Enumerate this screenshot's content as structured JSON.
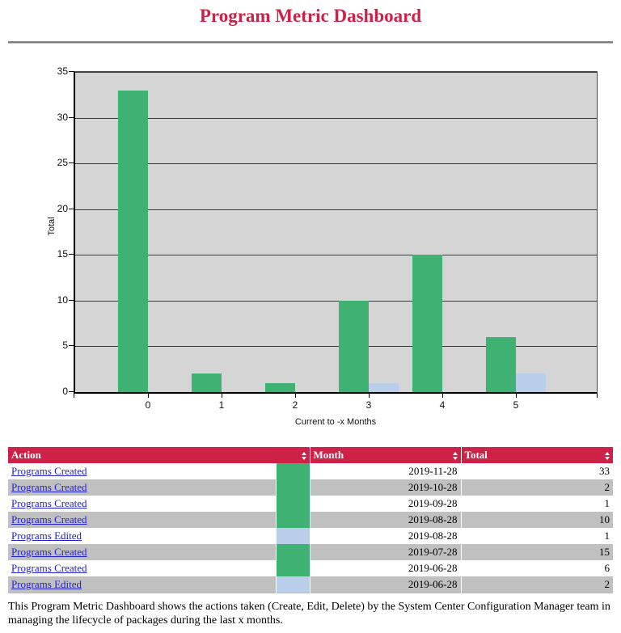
{
  "page": {
    "title": "Program Metric Dashboard",
    "footer": "This Program Metric Dashboard shows the actions taken (Create, Edit, Delete) by the System Center Configuration Manager team in managing the lifecycle of packages during the last x months."
  },
  "chart_data": {
    "type": "bar",
    "title": "",
    "xlabel": "Current to -x Months",
    "ylabel": "Total",
    "categories": [
      "0",
      "1",
      "2",
      "3",
      "4",
      "5"
    ],
    "series": [
      {
        "name": "Programs Created",
        "color": "#3EB173",
        "values": [
          33,
          2,
          1,
          10,
          15,
          6
        ]
      },
      {
        "name": "Programs Edited",
        "color": "#B9CEE9",
        "values": [
          null,
          null,
          null,
          1,
          null,
          2
        ]
      }
    ],
    "ylim": [
      0,
      35
    ],
    "yticks": [
      0,
      5,
      10,
      15,
      20,
      25,
      30,
      35
    ],
    "grid": true,
    "legend": "none",
    "plot_bg": "#D5D5D5"
  },
  "table": {
    "headers": [
      "Action",
      "Month",
      "Total"
    ],
    "rows": [
      {
        "action": "Programs Created",
        "swatch": "#3EB173",
        "month": "2019-11-28",
        "total": "33"
      },
      {
        "action": "Programs Created",
        "swatch": "#3EB173",
        "month": "2019-10-28",
        "total": "2"
      },
      {
        "action": "Programs Created",
        "swatch": "#3EB173",
        "month": "2019-09-28",
        "total": "1"
      },
      {
        "action": "Programs Created",
        "swatch": "#3EB173",
        "month": "2019-08-28",
        "total": "10"
      },
      {
        "action": "Programs Edited",
        "swatch": "#B9CEE9",
        "month": "2019-08-28",
        "total": "1"
      },
      {
        "action": "Programs Created",
        "swatch": "#3EB173",
        "month": "2019-07-28",
        "total": "15"
      },
      {
        "action": "Programs Created",
        "swatch": "#3EB173",
        "month": "2019-06-28",
        "total": "6"
      },
      {
        "action": "Programs Edited",
        "swatch": "#B9CEE9",
        "month": "2019-06-28",
        "total": "2"
      }
    ]
  }
}
